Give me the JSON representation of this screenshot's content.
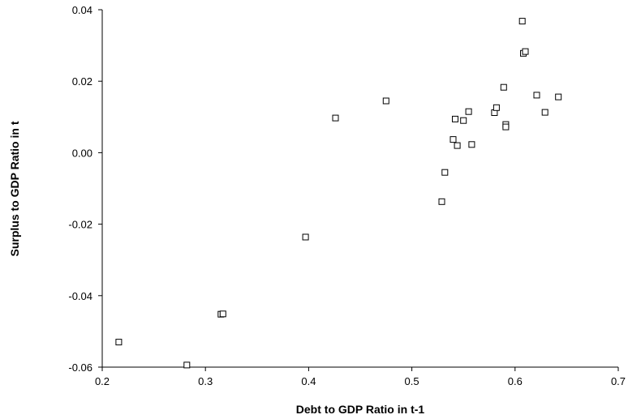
{
  "chart_data": {
    "type": "scatter",
    "title": "",
    "xlabel": "Debt to GDP Ratio in t-1",
    "ylabel": "Surplus to GDP Ratio in t",
    "xlim": [
      0.2,
      0.7
    ],
    "ylim": [
      -0.06,
      0.04
    ],
    "xticks": [
      0.2,
      0.3,
      0.4,
      0.5,
      0.6,
      0.7
    ],
    "xtick_labels": [
      "0.2",
      "0.3",
      "0.4",
      "0.5",
      "0.6",
      "0.7"
    ],
    "yticks": [
      -0.06,
      -0.04,
      -0.02,
      0.0,
      0.02,
      0.04
    ],
    "ytick_labels": [
      "-0.06",
      "-0.04",
      "-0.02",
      "0.00",
      "0.02",
      "0.04"
    ],
    "grid": false,
    "marker": "hollow-square",
    "colors": {
      "axis": "#000000",
      "marker_stroke": "#000000",
      "marker_fill": "#ffffff",
      "background": "#ffffff"
    },
    "points": [
      {
        "x": 0.216,
        "y": -0.053
      },
      {
        "x": 0.282,
        "y": -0.0594
      },
      {
        "x": 0.315,
        "y": -0.0452
      },
      {
        "x": 0.317,
        "y": -0.0451
      },
      {
        "x": 0.397,
        "y": -0.0236
      },
      {
        "x": 0.426,
        "y": 0.0097
      },
      {
        "x": 0.475,
        "y": 0.0145
      },
      {
        "x": 0.529,
        "y": -0.0137
      },
      {
        "x": 0.532,
        "y": -0.0055
      },
      {
        "x": 0.54,
        "y": 0.0037
      },
      {
        "x": 0.542,
        "y": 0.0094
      },
      {
        "x": 0.544,
        "y": 0.002
      },
      {
        "x": 0.55,
        "y": 0.009
      },
      {
        "x": 0.555,
        "y": 0.0115
      },
      {
        "x": 0.558,
        "y": 0.0023
      },
      {
        "x": 0.58,
        "y": 0.0112
      },
      {
        "x": 0.582,
        "y": 0.0126
      },
      {
        "x": 0.589,
        "y": 0.0183
      },
      {
        "x": 0.591,
        "y": 0.0079
      },
      {
        "x": 0.591,
        "y": 0.0072
      },
      {
        "x": 0.607,
        "y": 0.0368
      },
      {
        "x": 0.608,
        "y": 0.0278
      },
      {
        "x": 0.61,
        "y": 0.0283
      },
      {
        "x": 0.621,
        "y": 0.0161
      },
      {
        "x": 0.629,
        "y": 0.0113
      },
      {
        "x": 0.642,
        "y": 0.0156
      }
    ]
  }
}
